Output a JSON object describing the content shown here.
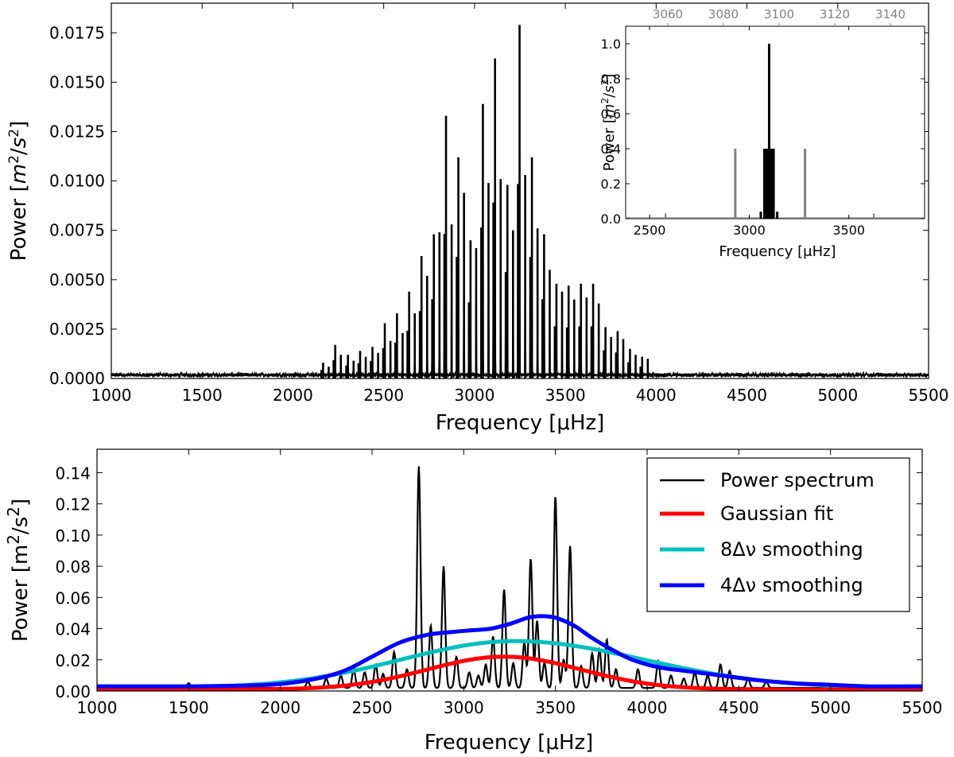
{
  "chart_data": [
    {
      "id": "top",
      "type": "line",
      "xlabel": "Frequency [μHz]",
      "ylabel": "Power [m²/s²]",
      "xlim": [
        1000,
        5500
      ],
      "ylim": [
        0,
        0.019
      ],
      "xticks": [
        1000,
        1500,
        2000,
        2500,
        3000,
        3500,
        4000,
        4500,
        5000,
        5500
      ],
      "xtick_labels": [
        "1000",
        "1500",
        "2000",
        "2500",
        "3000",
        "3500",
        "4000",
        "4500",
        "5000",
        "5500"
      ],
      "yticks": [
        0,
        0.0025,
        0.005,
        0.0075,
        0.01,
        0.0125,
        0.015,
        0.0175
      ],
      "ytick_labels": [
        "0.0000",
        "0.0025",
        "0.0050",
        "0.0075",
        "0.0100",
        "0.0125",
        "0.0150",
        "0.0175"
      ],
      "noise_level": 0.0002,
      "peaks": {
        "frequency": [
          2163,
          2230,
          2300,
          2367,
          2435,
          2503,
          2570,
          2637,
          2705,
          2773,
          2840,
          2908,
          2975,
          3043,
          3110,
          3178,
          3245,
          3313,
          3380,
          3448,
          3515,
          3583,
          3650,
          3718,
          3785,
          3853,
          3920
        ],
        "power_l0": [
          0.0008,
          0.0017,
          0.0012,
          0.0014,
          0.0016,
          0.0028,
          0.0033,
          0.0044,
          0.0062,
          0.0073,
          0.0133,
          0.0112,
          0.007,
          0.0139,
          0.0162,
          0.0098,
          0.0179,
          0.0112,
          0.0073,
          0.0048,
          0.0047,
          0.0048,
          0.0048,
          0.0026,
          0.0024,
          0.0015,
          0.0011
        ],
        "power_l1": [
          0.0006,
          0.0012,
          0.0009,
          0.0011,
          0.0013,
          0.0019,
          0.0023,
          0.0033,
          0.0052,
          0.0074,
          0.0078,
          0.0094,
          0.0066,
          0.0099,
          0.0101,
          0.0075,
          0.0103,
          0.0076,
          0.0055,
          0.0044,
          0.004,
          0.0041,
          0.0038,
          0.0021,
          0.002,
          0.0012,
          0.001
        ]
      }
    },
    {
      "id": "inset",
      "type": "line",
      "xlabel": "Frequency [μHz]",
      "ylabel": "Power [m²/s²]",
      "xlim": [
        2380,
        3880
      ],
      "ylim": [
        0,
        1.1
      ],
      "xticks": [
        2500,
        3000,
        3500
      ],
      "xtick_labels": [
        "2500",
        "3000",
        "3500"
      ],
      "yticks": [
        0,
        0.2,
        0.4,
        0.6,
        0.8,
        1.0
      ],
      "ytick_labels": [
        "0.0",
        "0.2",
        "0.4",
        "0.6",
        "0.8",
        "1.0"
      ],
      "top_xlim": [
        3050,
        3150
      ],
      "top_xticks": [
        3060,
        3080,
        3100,
        3120,
        3140
      ],
      "top_xtick_labels": [
        "3060",
        "3080",
        "3100",
        "3120",
        "3140"
      ],
      "window_gray": {
        "frequency": [
          2580,
          2930,
          3100,
          3280,
          3625
        ],
        "power": [
          0.03,
          0.4,
          0.4,
          0.4,
          0.03
        ]
      },
      "window_black": {
        "frequency": [
          3070,
          3083,
          3088,
          3093,
          3100,
          3106,
          3111,
          3116,
          3129
        ],
        "power": [
          0.04,
          0.4,
          0.4,
          0.4,
          1.0,
          0.4,
          0.4,
          0.4,
          0.04
        ]
      }
    },
    {
      "id": "bottom",
      "type": "line",
      "xlabel": "Frequency [μHz]",
      "ylabel": "Power [m²/s²]",
      "xlim": [
        1000,
        5500
      ],
      "ylim": [
        0,
        0.155
      ],
      "xticks": [
        1000,
        1500,
        2000,
        2500,
        3000,
        3500,
        4000,
        4500,
        5000,
        5500
      ],
      "xtick_labels": [
        "1000",
        "1500",
        "2000",
        "2500",
        "3000",
        "3500",
        "4000",
        "4500",
        "5000",
        "5500"
      ],
      "yticks": [
        0,
        0.02,
        0.04,
        0.06,
        0.08,
        0.1,
        0.12,
        0.14
      ],
      "ytick_labels": [
        "0.00",
        "0.02",
        "0.04",
        "0.06",
        "0.08",
        "0.10",
        "0.12",
        "0.14"
      ],
      "legend_position": "top-right",
      "series": [
        {
          "name": "Power spectrum",
          "color": "#000000",
          "peaks_frequency": [
            1500,
            2150,
            2250,
            2330,
            2400,
            2460,
            2520,
            2560,
            2620,
            2690,
            2755,
            2820,
            2890,
            2960,
            3030,
            3080,
            3120,
            3160,
            3220,
            3270,
            3330,
            3365,
            3400,
            3440,
            3500,
            3545,
            3580,
            3640,
            3700,
            3740,
            3780,
            3830,
            3950,
            4060,
            4130,
            4200,
            4260,
            4330,
            4400,
            4450,
            4550,
            4650
          ],
          "peaks_power": [
            0.003,
            0.004,
            0.006,
            0.008,
            0.012,
            0.01,
            0.015,
            0.009,
            0.023,
            0.012,
            0.142,
            0.04,
            0.078,
            0.02,
            0.01,
            0.008,
            0.015,
            0.033,
            0.063,
            0.016,
            0.029,
            0.083,
            0.043,
            0.016,
            0.123,
            0.018,
            0.091,
            0.014,
            0.022,
            0.025,
            0.031,
            0.012,
            0.012,
            0.017,
            0.008,
            0.006,
            0.01,
            0.008,
            0.015,
            0.011,
            0.006,
            0.004
          ]
        },
        {
          "name": "Gaussian fit",
          "color": "#ff0000",
          "center": 3220,
          "amplitude": 0.021,
          "sigma": 420
        },
        {
          "name": "8Δν smoothing",
          "color": "#00bfbf",
          "center": 3280,
          "amplitude": 0.03,
          "sigma_left": 620,
          "sigma_right": 700
        },
        {
          "name": "4Δν smoothing",
          "color": "#0000ff",
          "x": [
            1000,
            1500,
            1800,
            2000,
            2200,
            2350,
            2500,
            2650,
            2800,
            2950,
            3050,
            3150,
            3250,
            3350,
            3420,
            3500,
            3600,
            3700,
            3800,
            3900,
            4000,
            4100,
            4200,
            4400,
            4600,
            4800,
            5000,
            5200,
            5500
          ],
          "y": [
            0.003,
            0.003,
            0.0035,
            0.0045,
            0.008,
            0.013,
            0.022,
            0.031,
            0.036,
            0.038,
            0.039,
            0.04,
            0.043,
            0.047,
            0.048,
            0.047,
            0.042,
            0.034,
            0.027,
            0.021,
            0.017,
            0.0145,
            0.013,
            0.01,
            0.007,
            0.005,
            0.004,
            0.003,
            0.003
          ]
        }
      ],
      "baseline": 0.002
    }
  ]
}
